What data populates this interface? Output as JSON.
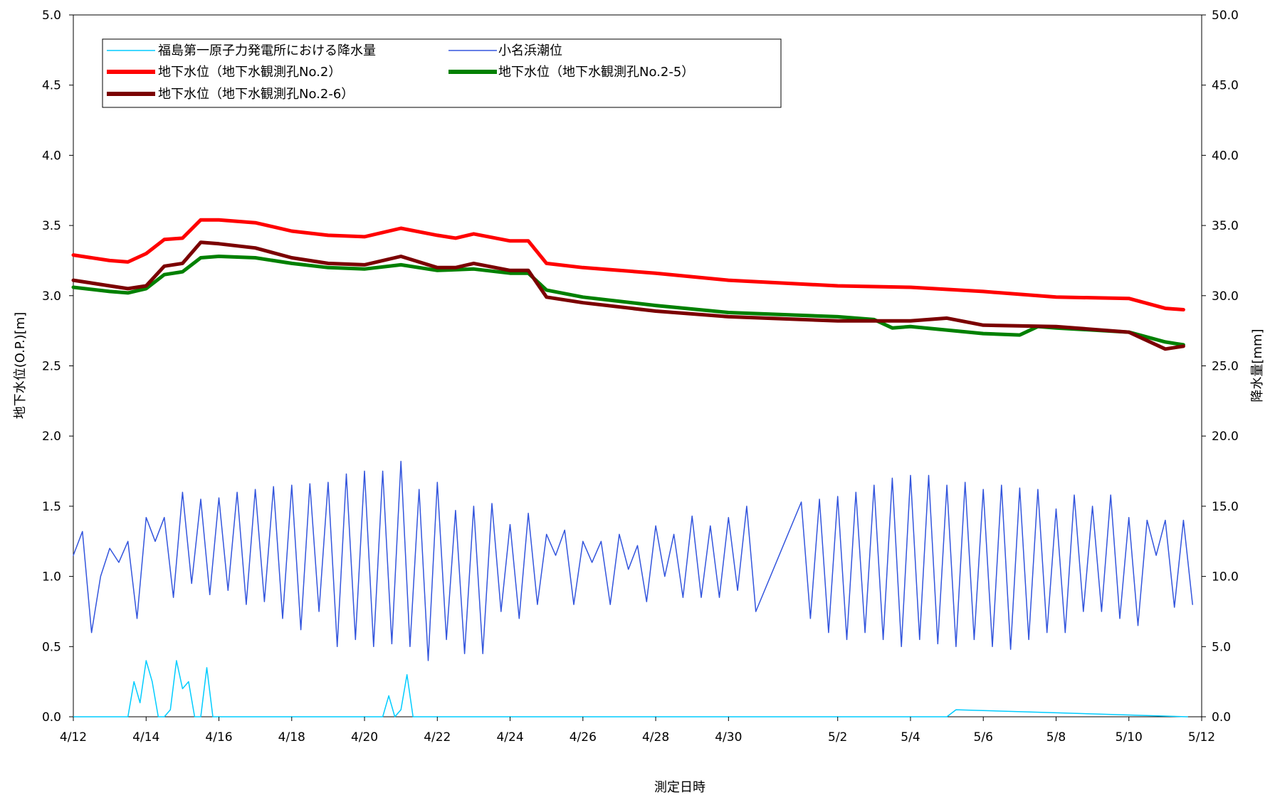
{
  "chart_data": {
    "type": "line",
    "xlabel": "測定日時",
    "ylabel_left": "地下水位(O.P.)[m]",
    "ylabel_right": "降水量[mm]",
    "x_range": [
      "4/12",
      "5/12"
    ],
    "ylim_left": [
      0,
      5
    ],
    "ylim_right": [
      0,
      50
    ],
    "legend_position": "top-left",
    "grid": false,
    "x_tick_labels": [
      "4/12",
      "4/14",
      "4/16",
      "4/18",
      "4/20",
      "4/22",
      "4/24",
      "4/26",
      "4/28",
      "4/30",
      "5/2",
      "5/4",
      "5/6",
      "5/8",
      "5/10",
      "5/12"
    ],
    "y_left_tick_labels": [
      "0.0",
      "0.5",
      "1.0",
      "1.5",
      "2.0",
      "2.5",
      "3.0",
      "3.5",
      "4.0",
      "4.5",
      "5.0"
    ],
    "y_right_tick_labels": [
      "0.0",
      "5.0",
      "10.0",
      "15.0",
      "20.0",
      "25.0",
      "30.0",
      "35.0",
      "40.0",
      "45.0",
      "50.0"
    ],
    "series": [
      {
        "name": "地下水位（地下水観測孔No.2）",
        "color": "#ff0000",
        "axis": "left",
        "x": [
          "4/12",
          "4/13",
          "4/13 12:00",
          "4/14",
          "4/14 12:00",
          "4/15",
          "4/15 12:00",
          "4/16",
          "4/17",
          "4/18",
          "4/19",
          "4/20",
          "4/21",
          "4/22",
          "4/22 12:00",
          "4/23",
          "4/24",
          "4/24 12:00",
          "4/25",
          "4/26",
          "4/28",
          "4/30",
          "5/2",
          "5/4",
          "5/6",
          "5/8",
          "5/10",
          "5/11",
          "5/11 12:00"
        ],
        "values": [
          3.29,
          3.25,
          3.24,
          3.3,
          3.4,
          3.41,
          3.54,
          3.54,
          3.52,
          3.46,
          3.43,
          3.42,
          3.48,
          3.43,
          3.41,
          3.44,
          3.39,
          3.39,
          3.23,
          3.2,
          3.16,
          3.11,
          3.07,
          3.06,
          3.03,
          2.99,
          2.98,
          2.91,
          2.9
        ]
      },
      {
        "name": "地下水位（地下水観測孔No.2-5）",
        "color": "#008000",
        "axis": "left",
        "x": [
          "4/12",
          "4/13",
          "4/13 12:00",
          "4/14",
          "4/14 12:00",
          "4/15",
          "4/15 12:00",
          "4/16",
          "4/17",
          "4/18",
          "4/19",
          "4/20",
          "4/21",
          "4/22",
          "4/23",
          "4/24",
          "4/24 12:00",
          "4/25",
          "4/26",
          "4/28",
          "4/30",
          "5/2",
          "5/3",
          "5/3 12:00",
          "5/4",
          "5/6",
          "5/7",
          "5/7 12:00",
          "5/8",
          "5/10",
          "5/11",
          "5/11 12:00"
        ],
        "values": [
          3.06,
          3.03,
          3.02,
          3.05,
          3.15,
          3.17,
          3.27,
          3.28,
          3.27,
          3.23,
          3.2,
          3.19,
          3.22,
          3.18,
          3.19,
          3.16,
          3.16,
          3.04,
          2.99,
          2.93,
          2.88,
          2.85,
          2.83,
          2.77,
          2.78,
          2.73,
          2.72,
          2.78,
          2.77,
          2.74,
          2.67,
          2.65
        ]
      },
      {
        "name": "地下水位（地下水観測孔No.2-6）",
        "color": "#7b0000",
        "axis": "left",
        "x": [
          "4/12",
          "4/13",
          "4/13 12:00",
          "4/14",
          "4/14 12:00",
          "4/15",
          "4/15 12:00",
          "4/16",
          "4/17",
          "4/18",
          "4/19",
          "4/20",
          "4/21",
          "4/22",
          "4/22 12:00",
          "4/23",
          "4/24",
          "4/24 12:00",
          "4/25",
          "4/26",
          "4/28",
          "4/30",
          "5/2",
          "5/4",
          "5/5",
          "5/6",
          "5/8",
          "5/10",
          "5/11",
          "5/11 12:00"
        ],
        "values": [
          3.11,
          3.07,
          3.05,
          3.07,
          3.21,
          3.23,
          3.38,
          3.37,
          3.34,
          3.27,
          3.23,
          3.22,
          3.28,
          3.2,
          3.2,
          3.23,
          3.18,
          3.18,
          2.99,
          2.95,
          2.89,
          2.85,
          2.82,
          2.82,
          2.84,
          2.79,
          2.78,
          2.74,
          2.62,
          2.64
        ]
      },
      {
        "name": "小名浜潮位",
        "color": "#3355dd",
        "axis": "left",
        "x": [
          "4/12",
          "4/12 06:00",
          "4/12 12:00",
          "4/12 18:00",
          "4/13",
          "4/13 06:00",
          "4/13 12:00",
          "4/13 18:00",
          "4/14",
          "4/14 06:00",
          "4/14 12:00",
          "4/14 18:00",
          "4/15",
          "4/15 06:00",
          "4/15 12:00",
          "4/15 18:00",
          "4/16",
          "4/16 06:00",
          "4/16 12:00",
          "4/16 18:00",
          "4/17",
          "4/17 06:00",
          "4/17 12:00",
          "4/17 18:00",
          "4/18",
          "4/18 06:00",
          "4/18 12:00",
          "4/18 18:00",
          "4/19",
          "4/19 06:00",
          "4/19 12:00",
          "4/19 18:00",
          "4/20",
          "4/20 06:00",
          "4/20 12:00",
          "4/20 18:00",
          "4/21",
          "4/21 06:00",
          "4/21 12:00",
          "4/21 18:00",
          "4/22",
          "4/22 06:00",
          "4/22 12:00",
          "4/22 18:00",
          "4/23",
          "4/23 06:00",
          "4/23 12:00",
          "4/23 18:00",
          "4/24",
          "4/24 06:00",
          "4/24 12:00",
          "4/24 18:00",
          "4/25",
          "4/25 06:00",
          "4/25 12:00",
          "4/25 18:00",
          "4/26",
          "4/26 06:00",
          "4/26 12:00",
          "4/26 18:00",
          "4/27",
          "4/27 06:00",
          "4/27 12:00",
          "4/27 18:00",
          "4/28",
          "4/28 06:00",
          "4/28 12:00",
          "4/28 18:00",
          "4/29",
          "4/29 06:00",
          "4/29 12:00",
          "4/29 18:00",
          "4/30",
          "4/30 06:00",
          "4/30 12:00",
          "4/30 18:00",
          "5/1",
          "5/1 06:00",
          "5/1 12:00",
          "5/1 18:00",
          "5/2",
          "5/2 06:00",
          "5/2 12:00",
          "5/2 18:00",
          "5/3",
          "5/3 06:00",
          "5/3 12:00",
          "5/3 18:00",
          "5/4",
          "5/4 06:00",
          "5/4 12:00",
          "5/4 18:00",
          "5/5",
          "5/5 06:00",
          "5/5 12:00",
          "5/5 18:00",
          "5/6",
          "5/6 06:00",
          "5/6 12:00",
          "5/6 18:00",
          "5/7",
          "5/7 06:00",
          "5/7 12:00",
          "5/7 18:00",
          "5/8",
          "5/8 06:00",
          "5/8 12:00",
          "5/8 18:00",
          "5/9",
          "5/9 06:00",
          "5/9 12:00",
          "5/9 18:00",
          "5/10",
          "5/10 06:00",
          "5/10 12:00",
          "5/10 18:00",
          "5/11",
          "5/11 06:00",
          "5/11 12:00",
          "5/11 18:00"
        ],
        "values": [
          1.15,
          1.32,
          0.6,
          1.0,
          1.2,
          1.1,
          1.25,
          0.7,
          1.42,
          1.25,
          1.42,
          0.85,
          1.6,
          0.95,
          1.55,
          0.87,
          1.56,
          0.9,
          1.6,
          0.8,
          1.62,
          0.82,
          1.64,
          0.7,
          1.65,
          0.62,
          1.66,
          0.75,
          1.67,
          0.5,
          1.73,
          0.55,
          1.75,
          0.5,
          1.75,
          0.52,
          1.82,
          0.5,
          1.62,
          0.4,
          1.67,
          0.55,
          1.47,
          0.45,
          1.5,
          0.45,
          1.52,
          0.75,
          1.37,
          0.7,
          1.45,
          0.8,
          1.3,
          1.15,
          1.33,
          0.8,
          1.25,
          1.1,
          1.25,
          0.8,
          1.3,
          1.05,
          1.22,
          0.82,
          1.36,
          1.0,
          1.3,
          0.85,
          1.43,
          0.85,
          1.36,
          0.85,
          1.42,
          0.9,
          1.5,
          0.75,
          1.53,
          0.7,
          1.55,
          0.6,
          1.57,
          0.55,
          1.6,
          0.6,
          1.65,
          0.55,
          1.7,
          0.5,
          1.72,
          0.55,
          1.72,
          0.52,
          1.65,
          0.5,
          1.67,
          0.55,
          1.62,
          0.5,
          1.65,
          0.48,
          1.63,
          0.55,
          1.62,
          0.6,
          1.48,
          0.6,
          1.58,
          0.75,
          1.5,
          0.75,
          1.58,
          0.7,
          1.42,
          0.65,
          1.4,
          1.15,
          1.4,
          0.78,
          1.4,
          0.8
        ]
      },
      {
        "name": "福島第一原子力発電所における降水量",
        "color": "#00ccff",
        "axis": "right",
        "x": [
          "4/13 12:00",
          "4/13 16:00",
          "4/13 20:00",
          "4/14",
          "4/14 04:00",
          "4/14 08:00",
          "4/14 12:00",
          "4/14 16:00",
          "4/14 20:00",
          "4/15",
          "4/15 04:00",
          "4/15 08:00",
          "4/15 12:00",
          "4/15 16:00",
          "4/15 20:00",
          "4/16",
          "4/16 04:00",
          "4/20 12:00",
          "4/20 16:00",
          "4/20 20:00",
          "4/21",
          "4/21 04:00",
          "4/21 08:00",
          "5/5",
          "5/5 06:00"
        ],
        "values": [
          0,
          2.5,
          1.0,
          4.0,
          2.5,
          0,
          0,
          0.5,
          4.0,
          2.0,
          2.5,
          0,
          0,
          3.5,
          0,
          0,
          0,
          0,
          1.5,
          0,
          0.5,
          3.0,
          0,
          0,
          0.5
        ]
      }
    ]
  }
}
